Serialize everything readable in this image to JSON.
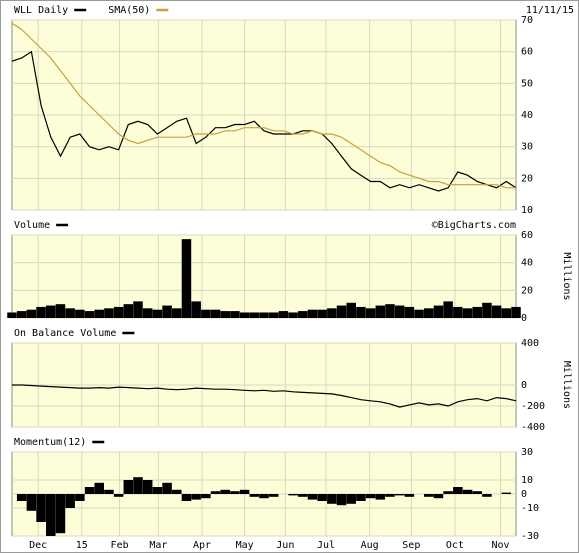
{
  "chart_data": [
    {
      "type": "line",
      "date": "11/11/15",
      "series": [
        {
          "name": "WLL Daily",
          "color": "#000000",
          "values": [
            57,
            58,
            60,
            43,
            33,
            27,
            33,
            34,
            30,
            29,
            30,
            29,
            37,
            38,
            37,
            34,
            36,
            38,
            39,
            31,
            33,
            36,
            36,
            37,
            37,
            38,
            35,
            34,
            34,
            34,
            35,
            35,
            34,
            31,
            27,
            23,
            21,
            19,
            19,
            17,
            18,
            17,
            18,
            17,
            16,
            17,
            22,
            21,
            19,
            18,
            17,
            19,
            17
          ]
        },
        {
          "name": "SMA(50)",
          "color": "#c8a040",
          "values": [
            69,
            67,
            64,
            61,
            58,
            54,
            50,
            46,
            43,
            40,
            37,
            34,
            32,
            31,
            32,
            33,
            33,
            33,
            33,
            34,
            34,
            34,
            35,
            35,
            36,
            36,
            36,
            35,
            35,
            34,
            34,
            35,
            34,
            34,
            33,
            31,
            29,
            27,
            25,
            24,
            22,
            21,
            20,
            19,
            19,
            18,
            18,
            18,
            18,
            18,
            18,
            17,
            17
          ]
        }
      ],
      "xlim": [
        0,
        52
      ],
      "ylim": [
        10,
        70
      ],
      "yticks": [
        10,
        20,
        30,
        40,
        50,
        60,
        70
      ],
      "grid": true
    },
    {
      "type": "bar",
      "credit": "©BigCharts.com",
      "ylabel": "Millions",
      "series": [
        {
          "name": "Volume",
          "color": "#000000",
          "values": [
            4,
            5,
            6,
            8,
            9,
            10,
            7,
            6,
            5,
            6,
            7,
            8,
            10,
            12,
            7,
            6,
            9,
            7,
            57,
            12,
            6,
            6,
            5,
            5,
            4,
            4,
            4,
            4,
            5,
            4,
            5,
            6,
            6,
            7,
            9,
            11,
            8,
            7,
            9,
            10,
            9,
            8,
            6,
            7,
            9,
            12,
            8,
            7,
            8,
            11,
            9,
            7,
            8
          ]
        }
      ],
      "xlim": [
        0,
        52
      ],
      "ylim": [
        0,
        60
      ],
      "yticks": [
        0,
        20,
        40,
        60
      ],
      "grid": true
    },
    {
      "type": "line",
      "ylabel": "Millions",
      "series": [
        {
          "name": "On Balance Volume",
          "color": "#000000",
          "values": [
            0,
            0,
            -5,
            -10,
            -15,
            -20,
            -25,
            -30,
            -30,
            -25,
            -30,
            -20,
            -25,
            -30,
            -35,
            -30,
            -40,
            -45,
            -40,
            -30,
            -35,
            -40,
            -40,
            -45,
            -50,
            -55,
            -50,
            -60,
            -55,
            -65,
            -70,
            -75,
            -80,
            -85,
            -100,
            -120,
            -140,
            -150,
            -160,
            -180,
            -210,
            -190,
            -170,
            -190,
            -180,
            -200,
            -160,
            -140,
            -130,
            -150,
            -120,
            -130,
            -150
          ]
        }
      ],
      "xlim": [
        0,
        52
      ],
      "ylim": [
        -400,
        400
      ],
      "yticks": [
        -400,
        -200,
        0,
        400
      ],
      "grid": true
    },
    {
      "type": "bar",
      "series": [
        {
          "name": "Momentum(12)",
          "color": "#000000",
          "values": [
            0,
            -5,
            -12,
            -20,
            -30,
            -28,
            -10,
            -5,
            5,
            8,
            3,
            -2,
            10,
            12,
            10,
            5,
            8,
            3,
            -5,
            -4,
            -3,
            2,
            3,
            2,
            3,
            -2,
            -3,
            -2,
            0,
            -1,
            -2,
            -4,
            -5,
            -7,
            -8,
            -7,
            -5,
            -3,
            -4,
            -2,
            -1,
            -2,
            0,
            -2,
            -3,
            2,
            5,
            3,
            2,
            -2,
            0,
            1,
            0
          ]
        }
      ],
      "xlim": [
        0,
        52
      ],
      "ylim": [
        -30,
        30
      ],
      "yticks": [
        -30,
        -10,
        0,
        10,
        30
      ],
      "grid": true,
      "xticks": [
        {
          "value": 2.7,
          "label": "Dec"
        },
        {
          "value": 7.2,
          "label": "15"
        },
        {
          "value": 11.1,
          "label": "Feb"
        },
        {
          "value": 15.1,
          "label": "Mar"
        },
        {
          "value": 19.6,
          "label": "Apr"
        },
        {
          "value": 24.0,
          "label": "May"
        },
        {
          "value": 28.2,
          "label": "Jun"
        },
        {
          "value": 32.4,
          "label": "Jul"
        },
        {
          "value": 36.9,
          "label": "Aug"
        },
        {
          "value": 41.2,
          "label": "Sep"
        },
        {
          "value": 45.7,
          "label": "Oct"
        },
        {
          "value": 50.4,
          "label": "Nov"
        }
      ]
    }
  ]
}
